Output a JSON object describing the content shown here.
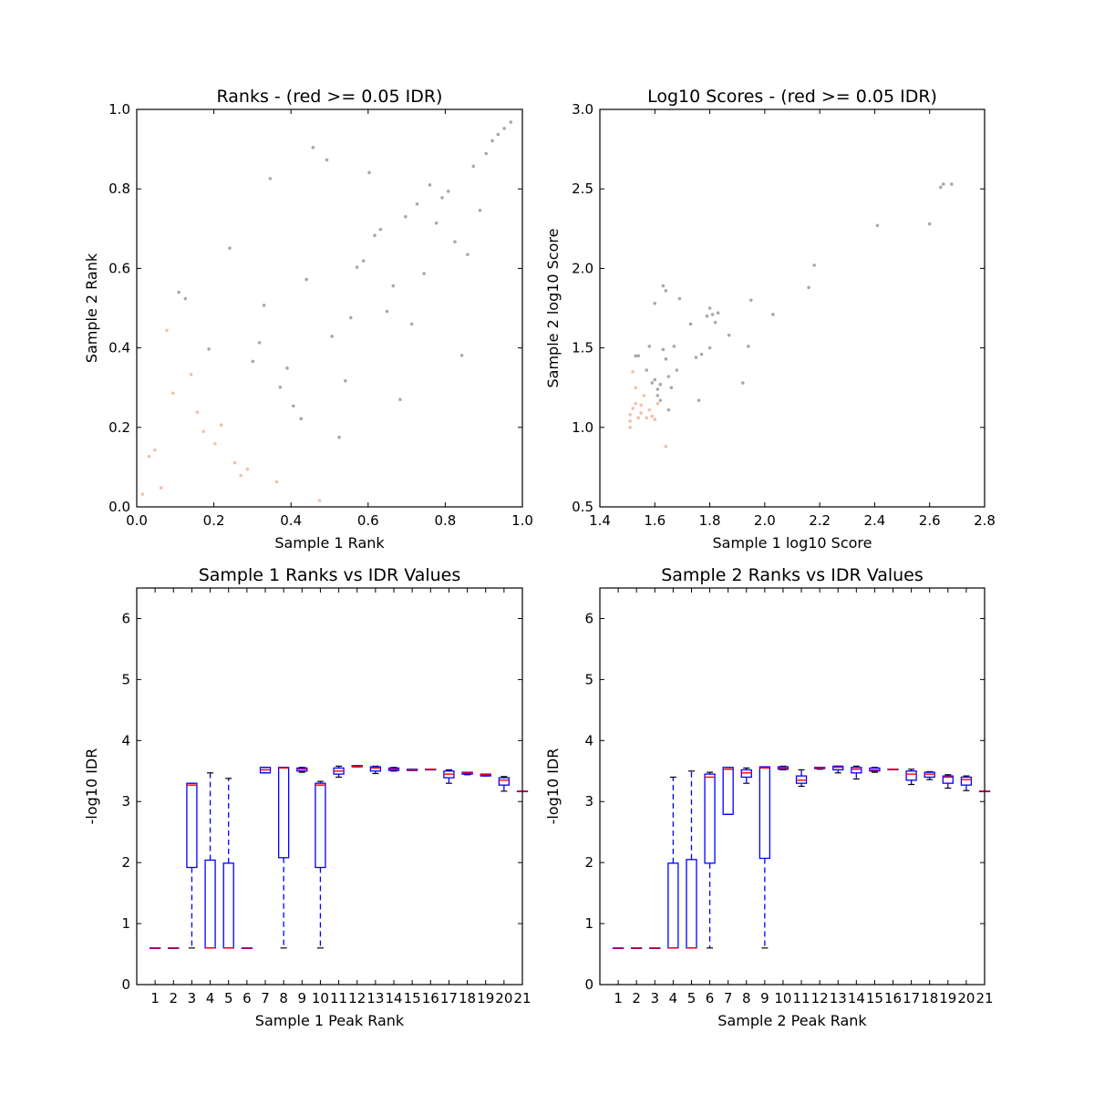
{
  "colors": {
    "point_gray": "#a0a0a0",
    "point_red": "#f2b8a3",
    "box_blue": "#0000ff",
    "median_red": "#ff0000",
    "whisker_black": "#000000"
  },
  "chart_data": [
    {
      "type": "scatter",
      "title": "Ranks - (red >= 0.05 IDR)",
      "xlabel": "Sample 1 Rank",
      "ylabel": "Sample 2 Rank",
      "xlim": [
        0.0,
        1.0
      ],
      "ylim": [
        0.0,
        1.0
      ],
      "xticks": [
        "0.0",
        "0.2",
        "0.4",
        "0.6",
        "0.8",
        "1.0"
      ],
      "yticks": [
        "0.0",
        "0.2",
        "0.4",
        "0.6",
        "0.8",
        "1.0"
      ],
      "grid": false,
      "series": [
        {
          "color": "#a0a0a0",
          "points": [
            [
              0.109,
              0.54
            ],
            [
              0.126,
              0.524
            ],
            [
              0.187,
              0.397
            ],
            [
              0.241,
              0.651
            ],
            [
              0.301,
              0.366
            ],
            [
              0.318,
              0.413
            ],
            [
              0.33,
              0.507
            ],
            [
              0.346,
              0.826
            ],
            [
              0.372,
              0.301
            ],
            [
              0.39,
              0.349
            ],
            [
              0.406,
              0.254
            ],
            [
              0.426,
              0.222
            ],
            [
              0.44,
              0.572
            ],
            [
              0.457,
              0.904
            ],
            [
              0.493,
              0.873
            ],
            [
              0.506,
              0.429
            ],
            [
              0.525,
              0.175
            ],
            [
              0.541,
              0.317
            ],
            [
              0.555,
              0.476
            ],
            [
              0.571,
              0.603
            ],
            [
              0.588,
              0.619
            ],
            [
              0.603,
              0.841
            ],
            [
              0.617,
              0.683
            ],
            [
              0.632,
              0.698
            ],
            [
              0.649,
              0.492
            ],
            [
              0.665,
              0.556
            ],
            [
              0.683,
              0.27
            ],
            [
              0.697,
              0.73
            ],
            [
              0.713,
              0.46
            ],
            [
              0.727,
              0.762
            ],
            [
              0.745,
              0.587
            ],
            [
              0.76,
              0.81
            ],
            [
              0.777,
              0.714
            ],
            [
              0.792,
              0.778
            ],
            [
              0.808,
              0.794
            ],
            [
              0.825,
              0.667
            ],
            [
              0.843,
              0.381
            ],
            [
              0.858,
              0.635
            ],
            [
              0.873,
              0.857
            ],
            [
              0.89,
              0.746
            ],
            [
              0.906,
              0.889
            ],
            [
              0.922,
              0.921
            ],
            [
              0.937,
              0.937
            ],
            [
              0.953,
              0.952
            ],
            [
              0.97,
              0.968
            ]
          ]
        },
        {
          "color": "#f2b8a3",
          "points": [
            [
              0.015,
              0.032
            ],
            [
              0.032,
              0.127
            ],
            [
              0.047,
              0.143
            ],
            [
              0.063,
              0.048
            ],
            [
              0.078,
              0.444
            ],
            [
              0.094,
              0.286
            ],
            [
              0.141,
              0.333
            ],
            [
              0.157,
              0.238
            ],
            [
              0.173,
              0.19
            ],
            [
              0.203,
              0.159
            ],
            [
              0.219,
              0.206
            ],
            [
              0.254,
              0.111
            ],
            [
              0.27,
              0.079
            ],
            [
              0.287,
              0.095
            ],
            [
              0.363,
              0.063
            ],
            [
              0.474,
              0.016
            ]
          ]
        }
      ]
    },
    {
      "type": "scatter",
      "title": "Log10 Scores - (red >= 0.05 IDR)",
      "xlabel": "Sample 1 log10 Score",
      "ylabel": "Sample 2 log10 Score",
      "xlim": [
        1.4,
        2.8
      ],
      "ylim": [
        0.5,
        3.0
      ],
      "xticks": [
        "1.4",
        "1.6",
        "1.8",
        "2.0",
        "2.2",
        "2.4",
        "2.6",
        "2.8"
      ],
      "yticks": [
        "0.5",
        "1.0",
        "1.5",
        "2.0",
        "2.5",
        "3.0"
      ],
      "grid": false,
      "series": [
        {
          "color": "#a0a0a0",
          "points": [
            [
              1.53,
              1.45
            ],
            [
              1.54,
              1.45
            ],
            [
              1.57,
              1.36
            ],
            [
              1.58,
              1.51
            ],
            [
              1.59,
              1.28
            ],
            [
              1.6,
              1.3
            ],
            [
              1.6,
              1.78
            ],
            [
              1.61,
              1.2
            ],
            [
              1.61,
              1.24
            ],
            [
              1.62,
              1.17
            ],
            [
              1.62,
              1.27
            ],
            [
              1.63,
              1.49
            ],
            [
              1.63,
              1.89
            ],
            [
              1.64,
              1.43
            ],
            [
              1.64,
              1.86
            ],
            [
              1.65,
              1.32
            ],
            [
              1.65,
              1.11
            ],
            [
              1.66,
              1.25
            ],
            [
              1.67,
              1.51
            ],
            [
              1.68,
              1.36
            ],
            [
              1.69,
              1.81
            ],
            [
              1.73,
              1.65
            ],
            [
              1.75,
              1.44
            ],
            [
              1.76,
              1.17
            ],
            [
              1.77,
              1.46
            ],
            [
              1.79,
              1.7
            ],
            [
              1.8,
              1.75
            ],
            [
              1.8,
              1.5
            ],
            [
              1.81,
              1.71
            ],
            [
              1.82,
              1.66
            ],
            [
              1.83,
              1.72
            ],
            [
              1.87,
              1.58
            ],
            [
              1.92,
              1.28
            ],
            [
              1.94,
              1.51
            ],
            [
              1.95,
              1.8
            ],
            [
              2.03,
              1.71
            ],
            [
              2.16,
              1.88
            ],
            [
              2.18,
              2.02
            ],
            [
              2.41,
              2.27
            ],
            [
              2.6,
              2.28
            ],
            [
              2.64,
              2.51
            ],
            [
              2.65,
              2.53
            ],
            [
              2.68,
              2.53
            ]
          ]
        },
        {
          "color": "#f2b8a3",
          "points": [
            [
              1.51,
              1.0
            ],
            [
              1.51,
              1.04
            ],
            [
              1.51,
              1.08
            ],
            [
              1.52,
              1.12
            ],
            [
              1.52,
              1.35
            ],
            [
              1.53,
              1.15
            ],
            [
              1.53,
              1.25
            ],
            [
              1.54,
              1.06
            ],
            [
              1.55,
              1.09
            ],
            [
              1.55,
              1.14
            ],
            [
              1.56,
              1.2
            ],
            [
              1.57,
              1.06
            ],
            [
              1.58,
              1.11
            ],
            [
              1.59,
              1.07
            ],
            [
              1.6,
              1.05
            ],
            [
              1.61,
              1.15
            ],
            [
              1.64,
              0.88
            ]
          ]
        }
      ]
    },
    {
      "type": "box",
      "title": "Sample 1 Ranks vs IDR Values",
      "xlabel": "Sample 1 Peak Rank",
      "ylabel": "-log10 IDR",
      "xlim": [
        0,
        21
      ],
      "ylim": [
        0,
        6.5
      ],
      "xticks": [
        "1",
        "2",
        "3",
        "4",
        "5",
        "6",
        "7",
        "8",
        "9",
        "10",
        "11",
        "12",
        "13",
        "14",
        "15",
        "16",
        "17",
        "18",
        "19",
        "20",
        "21"
      ],
      "yticks": [
        "0",
        "1",
        "2",
        "3",
        "4",
        "5",
        "6"
      ],
      "grid": false,
      "boxes": [
        {
          "q1": 0.6,
          "median": 0.6,
          "q3": 0.6,
          "wlo": 0.6,
          "whi": 0.6
        },
        {
          "q1": 0.6,
          "median": 0.6,
          "q3": 0.6,
          "wlo": 0.6,
          "whi": 0.6
        },
        {
          "q1": 1.92,
          "median": 3.27,
          "q3": 3.3,
          "wlo": 0.6,
          "whi": 3.3
        },
        {
          "q1": 0.6,
          "median": 0.6,
          "q3": 2.04,
          "wlo": 0.6,
          "whi": 3.47
        },
        {
          "q1": 0.6,
          "median": 0.6,
          "q3": 1.99,
          "wlo": 0.6,
          "whi": 3.38
        },
        {
          "q1": 0.6,
          "median": 0.6,
          "q3": 0.6,
          "wlo": 0.6,
          "whi": 0.6
        },
        {
          "q1": 3.47,
          "median": 3.52,
          "q3": 3.56,
          "wlo": 3.47,
          "whi": 3.56
        },
        {
          "q1": 2.08,
          "median": 3.55,
          "q3": 3.56,
          "wlo": 0.6,
          "whi": 3.56
        },
        {
          "q1": 3.5,
          "median": 3.53,
          "q3": 3.55,
          "wlo": 3.48,
          "whi": 3.56
        },
        {
          "q1": 1.92,
          "median": 3.27,
          "q3": 3.3,
          "wlo": 0.6,
          "whi": 3.33
        },
        {
          "q1": 3.45,
          "median": 3.5,
          "q3": 3.55,
          "wlo": 3.4,
          "whi": 3.58
        },
        {
          "q1": 3.57,
          "median": 3.58,
          "q3": 3.59,
          "wlo": 3.57,
          "whi": 3.59
        },
        {
          "q1": 3.5,
          "median": 3.55,
          "q3": 3.57,
          "wlo": 3.46,
          "whi": 3.58
        },
        {
          "q1": 3.51,
          "median": 3.53,
          "q3": 3.55,
          "wlo": 3.5,
          "whi": 3.56
        },
        {
          "q1": 3.51,
          "median": 3.52,
          "q3": 3.53,
          "wlo": 3.51,
          "whi": 3.53
        },
        {
          "q1": 3.52,
          "median": 3.53,
          "q3": 3.53,
          "wlo": 3.52,
          "whi": 3.53
        },
        {
          "q1": 3.39,
          "median": 3.45,
          "q3": 3.5,
          "wlo": 3.3,
          "whi": 3.52
        },
        {
          "q1": 3.45,
          "median": 3.47,
          "q3": 3.48,
          "wlo": 3.44,
          "whi": 3.48
        },
        {
          "q1": 3.42,
          "median": 3.44,
          "q3": 3.45,
          "wlo": 3.42,
          "whi": 3.45
        },
        {
          "q1": 3.27,
          "median": 3.35,
          "q3": 3.39,
          "wlo": 3.17,
          "whi": 3.41
        },
        {
          "q1": 3.17,
          "median": 3.17,
          "q3": 3.17,
          "wlo": 3.17,
          "whi": 3.17
        }
      ]
    },
    {
      "type": "box",
      "title": "Sample 2 Ranks vs IDR Values",
      "xlabel": "Sample 2 Peak Rank",
      "ylabel": "-log10 IDR",
      "xlim": [
        0,
        21
      ],
      "ylim": [
        0,
        6.5
      ],
      "xticks": [
        "1",
        "2",
        "3",
        "4",
        "5",
        "6",
        "7",
        "8",
        "9",
        "10",
        "11",
        "12",
        "13",
        "14",
        "15",
        "16",
        "17",
        "18",
        "19",
        "20",
        "21"
      ],
      "yticks": [
        "0",
        "1",
        "2",
        "3",
        "4",
        "5",
        "6"
      ],
      "grid": false,
      "boxes": [
        {
          "q1": 0.6,
          "median": 0.6,
          "q3": 0.6,
          "wlo": 0.6,
          "whi": 0.6
        },
        {
          "q1": 0.6,
          "median": 0.6,
          "q3": 0.6,
          "wlo": 0.6,
          "whi": 0.6
        },
        {
          "q1": 0.6,
          "median": 0.6,
          "q3": 0.6,
          "wlo": 0.6,
          "whi": 0.6
        },
        {
          "q1": 0.6,
          "median": 0.6,
          "q3": 1.99,
          "wlo": 0.6,
          "whi": 3.4
        },
        {
          "q1": 0.6,
          "median": 0.6,
          "q3": 2.05,
          "wlo": 0.6,
          "whi": 3.5
        },
        {
          "q1": 1.99,
          "median": 3.4,
          "q3": 3.45,
          "wlo": 0.6,
          "whi": 3.48
        },
        {
          "q1": 2.79,
          "median": 3.53,
          "q3": 3.56,
          "wlo": 2.79,
          "whi": 3.56
        },
        {
          "q1": 3.4,
          "median": 3.47,
          "q3": 3.52,
          "wlo": 3.3,
          "whi": 3.55
        },
        {
          "q1": 2.07,
          "median": 3.55,
          "q3": 3.57,
          "wlo": 0.6,
          "whi": 3.57
        },
        {
          "q1": 3.53,
          "median": 3.55,
          "q3": 3.57,
          "wlo": 3.52,
          "whi": 3.58
        },
        {
          "q1": 3.3,
          "median": 3.35,
          "q3": 3.42,
          "wlo": 3.25,
          "whi": 3.52
        },
        {
          "q1": 3.54,
          "median": 3.55,
          "q3": 3.56,
          "wlo": 3.53,
          "whi": 3.56
        },
        {
          "q1": 3.52,
          "median": 3.56,
          "q3": 3.58,
          "wlo": 3.47,
          "whi": 3.58
        },
        {
          "q1": 3.47,
          "median": 3.53,
          "q3": 3.56,
          "wlo": 3.37,
          "whi": 3.58
        },
        {
          "q1": 3.5,
          "median": 3.52,
          "q3": 3.55,
          "wlo": 3.48,
          "whi": 3.56
        },
        {
          "q1": 3.53,
          "median": 3.53,
          "q3": 3.53,
          "wlo": 3.53,
          "whi": 3.53
        },
        {
          "q1": 3.35,
          "median": 3.45,
          "q3": 3.5,
          "wlo": 3.28,
          "whi": 3.53
        },
        {
          "q1": 3.4,
          "median": 3.45,
          "q3": 3.48,
          "wlo": 3.36,
          "whi": 3.49
        },
        {
          "q1": 3.3,
          "median": 3.4,
          "q3": 3.42,
          "wlo": 3.22,
          "whi": 3.44
        },
        {
          "q1": 3.27,
          "median": 3.36,
          "q3": 3.4,
          "wlo": 3.18,
          "whi": 3.42
        },
        {
          "q1": 3.17,
          "median": 3.17,
          "q3": 3.17,
          "wlo": 3.17,
          "whi": 3.17
        }
      ]
    }
  ]
}
